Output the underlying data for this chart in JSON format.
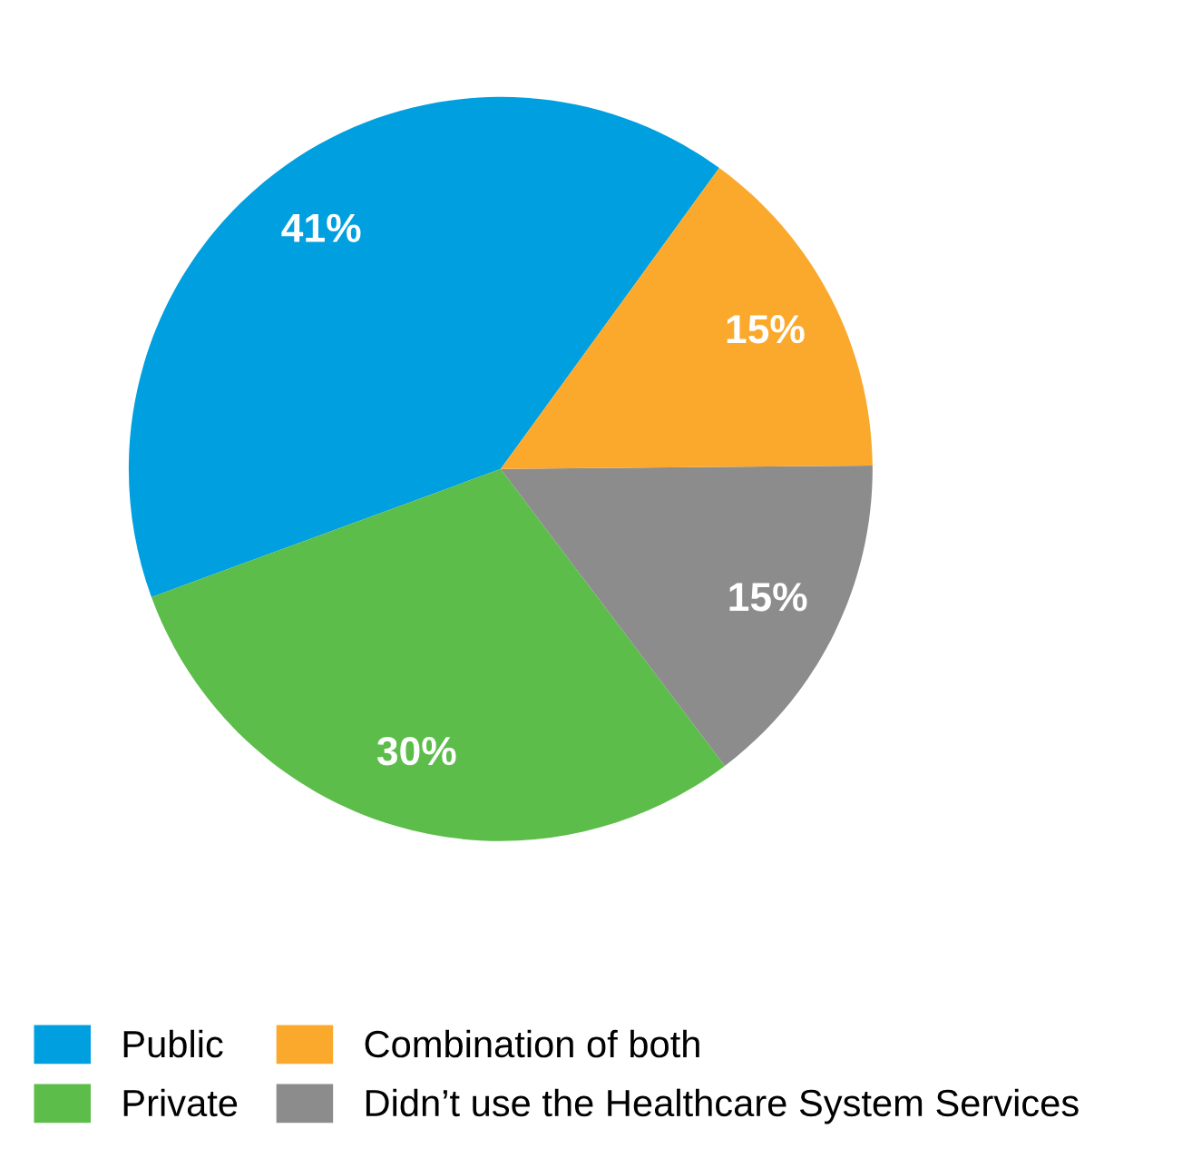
{
  "chart_data": {
    "type": "pie",
    "categories": [
      "Public",
      "Private",
      "Didn’t use the Healthcare System Services",
      "Combination of both"
    ],
    "values": [
      41,
      30,
      15,
      15
    ],
    "colors": [
      "#009fdf",
      "#5cbd4a",
      "#8c8c8c",
      "#fba92c"
    ],
    "value_labels": [
      "41%",
      "30%",
      "15%",
      "15%"
    ],
    "legend": "bottom"
  }
}
